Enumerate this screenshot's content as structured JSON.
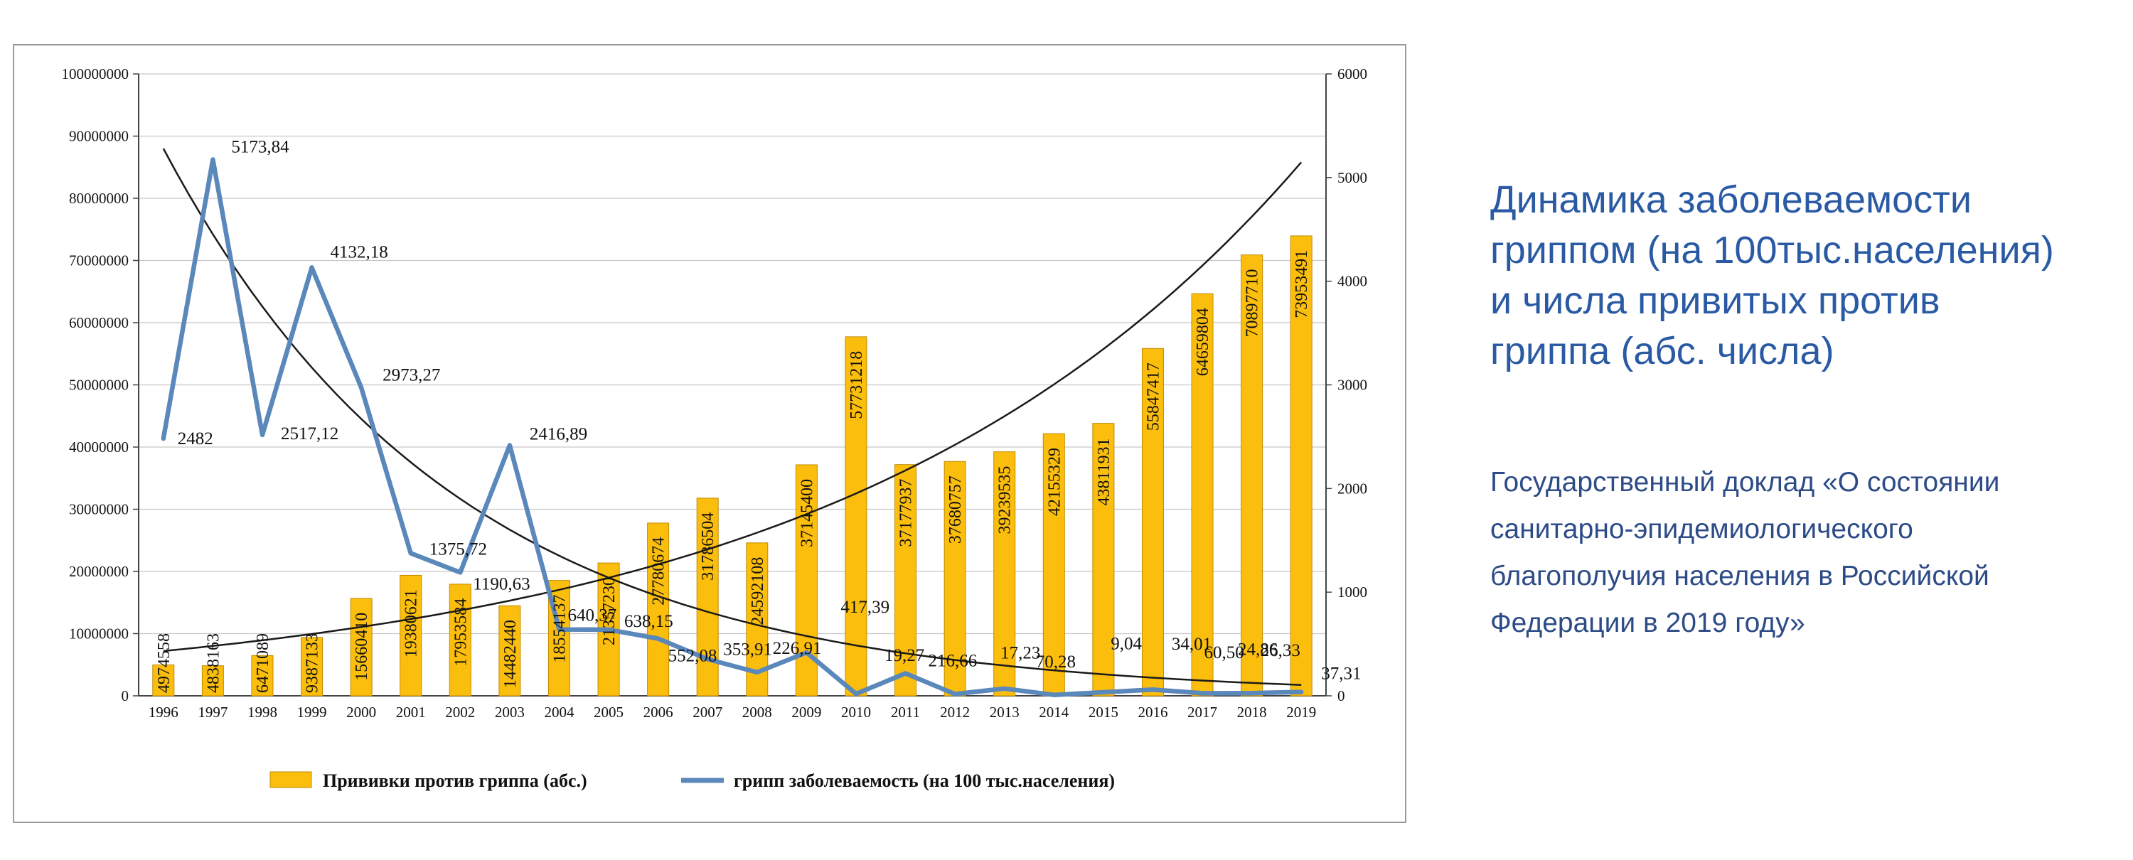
{
  "side_panel": {
    "title_lines": [
      "Динамика заболеваемости",
      "гриппом (на 100тыс.населения)",
      "и числа привитых против",
      "гриппа (абс. числа)"
    ],
    "subtitle_lines": [
      "Государственный доклад  «О состоянии",
      "санитарно-эпидемиологического",
      "благополучия населения в Российской",
      "Федерации в 2019 году»"
    ],
    "title_color": "#2A5AA4",
    "subtitle_color": "#2C4B87"
  },
  "chart_data": {
    "type": "bar+line",
    "title": "",
    "categories": [
      "1996",
      "1997",
      "1998",
      "1999",
      "2000",
      "2001",
      "2002",
      "2003",
      "2004",
      "2005",
      "2006",
      "2007",
      "2008",
      "2009",
      "2010",
      "2011",
      "2012",
      "2013",
      "2014",
      "2015",
      "2016",
      "2017",
      "2018",
      "2019"
    ],
    "left_axis": {
      "min": 0,
      "max": 100000000,
      "step": 10000000,
      "tick_labels": [
        "0",
        "10000000",
        "20000000",
        "30000000",
        "40000000",
        "50000000",
        "60000000",
        "70000000",
        "80000000",
        "90000000",
        "100000000"
      ]
    },
    "right_axis": {
      "min": 0,
      "max": 6000,
      "step": 1000,
      "tick_labels": [
        "0",
        "1000",
        "2000",
        "3000",
        "4000",
        "5000",
        "6000"
      ]
    },
    "grid": true,
    "legend_position": "bottom",
    "series": [
      {
        "name": "Прививки против гриппа (абс.)",
        "kind": "bar",
        "axis": "left",
        "color": "#FCBE0D",
        "edge_color": "#C08A00",
        "values": [
          4974558,
          4838163,
          6471089,
          9387133,
          15660410,
          19380621,
          17953584,
          14482440,
          18554137,
          21357230,
          27780674,
          31786504,
          24592108,
          37145400,
          57731218,
          37177937,
          37680757,
          39239535,
          42155329,
          43811931,
          55847417,
          64659804,
          70897710,
          73953491
        ],
        "value_labels": [
          "4974558",
          "4838163",
          "6471089",
          "9387133",
          "15660410",
          "19380621",
          "17953584",
          "14482440",
          "18554137",
          "21357230",
          "27780674",
          "31786504",
          "24592108",
          "37145400",
          "57731218",
          "37177937",
          "37680757",
          "39239535",
          "42155329",
          "43811931",
          "55847417",
          "64659804",
          "70897710",
          "73953491"
        ]
      },
      {
        "name": "грипп заболеваемость (на 100 тыс.населения)",
        "kind": "line",
        "axis": "right",
        "color": "#5B88BB",
        "values": [
          2482,
          5173.84,
          2517.12,
          4132.18,
          2973.27,
          1375.72,
          1190.63,
          2416.89,
          640.37,
          638.15,
          552.08,
          353.91,
          226.91,
          417.39,
          19.27,
          216.66,
          17.23,
          70.28,
          9.04,
          34.01,
          60.5,
          24.86,
          26.33,
          37.31
        ],
        "point_labels": [
          {
            "t": "2482",
            "dx": 20,
            "dy": 8
          },
          {
            "t": "5173,84",
            "dx": 26,
            "dy": -10
          },
          {
            "t": "2517,12",
            "dx": 26,
            "dy": 6
          },
          {
            "t": "4132,18",
            "dx": 26,
            "dy": -14
          },
          {
            "t": "2973,27",
            "dx": 30,
            "dy": -10
          },
          {
            "t": "1375,72",
            "dx": 26,
            "dy": 2
          },
          {
            "t": "1190,63",
            "dx": 18,
            "dy": 24
          },
          {
            "t": "2416,89",
            "dx": 28,
            "dy": -8
          },
          {
            "t": "640,37",
            "dx": 12,
            "dy": -12
          },
          {
            "t": "638,15",
            "dx": 22,
            "dy": -4
          },
          {
            "t": "552,08",
            "dx": 14,
            "dy": 32
          },
          {
            "t": "353,91",
            "dx": 22,
            "dy": -6
          },
          {
            "t": "226,91",
            "dx": 22,
            "dy": -26
          },
          {
            "t": "417,39",
            "dx": 48,
            "dy": -56
          },
          {
            "t": "19,27",
            "dx": 40,
            "dy": -46
          },
          {
            "t": "216,66",
            "dx": 32,
            "dy": -10
          },
          {
            "t": "17,23",
            "dx": 64,
            "dy": -50
          },
          {
            "t": "70,28",
            "dx": 44,
            "dy": -30
          },
          {
            "t": "9,04",
            "dx": 80,
            "dy": -64
          },
          {
            "t": "34,01",
            "dx": 96,
            "dy": -60
          },
          {
            "t": "60,50",
            "dx": 72,
            "dy": -44
          },
          {
            "t": "24,86",
            "dx": 50,
            "dy": -54
          },
          {
            "t": "26,33",
            "dx": 12,
            "dy": -52
          },
          {
            "t": "37,31",
            "dx": 28,
            "dy": -18
          }
        ]
      }
    ],
    "trend_lines": [
      {
        "axis": "right",
        "shape": "exponential",
        "start": 5280,
        "end": 105,
        "color": "#1a1a1a"
      },
      {
        "axis": "left",
        "shape": "exponential",
        "start": 7200000,
        "end": 85800000,
        "color": "#1a1a1a"
      }
    ]
  }
}
